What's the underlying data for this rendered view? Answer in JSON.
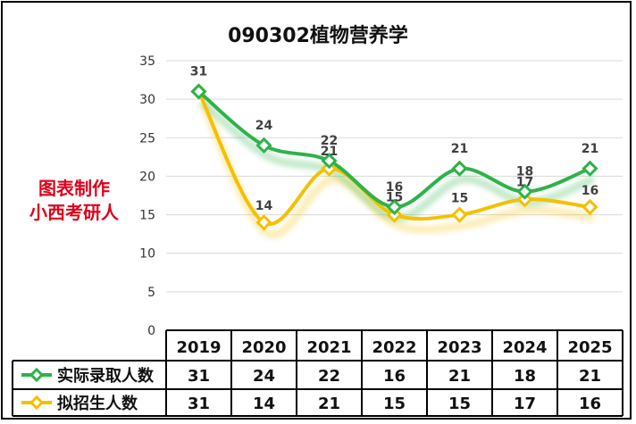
{
  "chart_data": {
    "type": "line",
    "title": "090302植物营养学",
    "categories": [
      "2019",
      "2020",
      "2021",
      "2022",
      "2023",
      "2024",
      "2025"
    ],
    "series": [
      {
        "name": "实际录取人数",
        "values": [
          31,
          24,
          22,
          16,
          21,
          18,
          21
        ],
        "color": "#2db34a"
      },
      {
        "name": "拟招生人数",
        "values": [
          31,
          14,
          21,
          15,
          15,
          17,
          16
        ],
        "color": "#f5c000"
      }
    ],
    "ylim": [
      0,
      35
    ],
    "yticks": [
      0,
      5,
      10,
      15,
      20,
      25,
      30,
      35
    ],
    "grid": true,
    "legend": "data-table",
    "marker": "diamond"
  },
  "watermark": {
    "line1": "图表制作",
    "line2": "小西考研人"
  }
}
